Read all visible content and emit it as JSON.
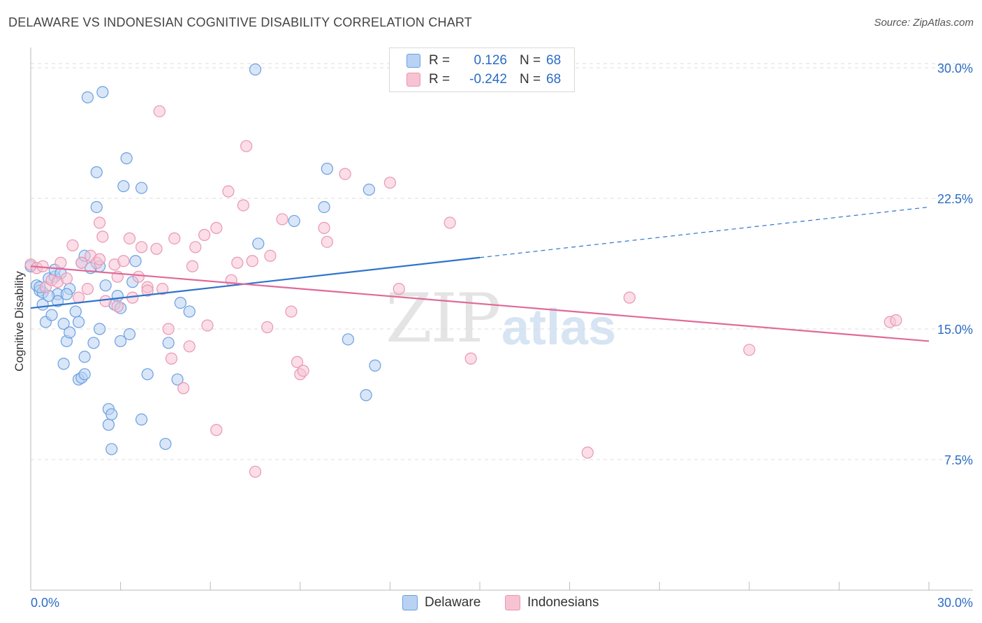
{
  "title": "DELAWARE VS INDONESIAN COGNITIVE DISABILITY CORRELATION CHART",
  "source": "Source: ZipAtlas.com",
  "watermark": {
    "part1": "ZIP",
    "part2": "atlas"
  },
  "legend": {
    "rows": [
      {
        "r_label": "R =",
        "r_value": "0.126",
        "n_label": "N =",
        "n_value": "68"
      },
      {
        "r_label": "R =",
        "r_value": "-0.242",
        "n_label": "N =",
        "n_value": "68"
      }
    ]
  },
  "bottom_legend": [
    "Delaware",
    "Indonesians"
  ],
  "colors": {
    "delaware_fill": "#b8d2f3",
    "delaware_stroke": "#6b9fe0",
    "delaware_line": "#2f73cc",
    "indonesian_fill": "#f7c3d3",
    "indonesian_stroke": "#e897b2",
    "indonesian_line": "#e06a98",
    "axis_label": "#2b6cc4",
    "grid": "#dddddd"
  },
  "chart_data": {
    "type": "scatter",
    "title": "DELAWARE VS INDONESIAN COGNITIVE DISABILITY CORRELATION CHART",
    "xlabel": "",
    "ylabel": "Cognitive Disability",
    "xlim": [
      0,
      30
    ],
    "ylim": [
      0,
      31.5
    ],
    "x_tick_labels": [
      "0.0%",
      "30.0%"
    ],
    "y_ticks": [
      7.5,
      15.0,
      22.5,
      30.0
    ],
    "y_tick_labels": [
      "7.5%",
      "15.0%",
      "22.5%",
      "30.0%"
    ],
    "grid": true,
    "legend_position": "top-center",
    "series": [
      {
        "name": "Delaware",
        "r": 0.126,
        "n": 68,
        "trend": {
          "x0": 0.0,
          "y0": 16.2,
          "x1": 15.0,
          "y1": 19.1,
          "dashed_to_x": 30.0,
          "dashed_to_y": 22.0
        },
        "points": [
          [
            0.0,
            18.6
          ],
          [
            0.2,
            17.5
          ],
          [
            0.3,
            17.2
          ],
          [
            0.4,
            17.1
          ],
          [
            0.4,
            16.4
          ],
          [
            0.5,
            15.4
          ],
          [
            0.6,
            17.9
          ],
          [
            0.7,
            15.8
          ],
          [
            0.8,
            18.0
          ],
          [
            0.8,
            18.4
          ],
          [
            0.9,
            17.0
          ],
          [
            0.9,
            16.6
          ],
          [
            1.1,
            15.3
          ],
          [
            1.1,
            13.0
          ],
          [
            1.2,
            14.3
          ],
          [
            1.3,
            17.3
          ],
          [
            1.3,
            14.8
          ],
          [
            1.5,
            16.0
          ],
          [
            1.6,
            12.1
          ],
          [
            1.6,
            15.4
          ],
          [
            1.7,
            12.2
          ],
          [
            1.8,
            13.4
          ],
          [
            1.8,
            12.4
          ],
          [
            1.7,
            18.8
          ],
          [
            1.8,
            19.2
          ],
          [
            1.9,
            28.3
          ],
          [
            2.1,
            14.2
          ],
          [
            2.2,
            24.0
          ],
          [
            2.2,
            22.0
          ],
          [
            2.3,
            18.6
          ],
          [
            2.3,
            15.0
          ],
          [
            2.4,
            28.6
          ],
          [
            2.5,
            17.5
          ],
          [
            2.6,
            9.5
          ],
          [
            2.6,
            10.4
          ],
          [
            2.7,
            10.1
          ],
          [
            2.7,
            8.1
          ],
          [
            2.8,
            16.4
          ],
          [
            2.9,
            16.9
          ],
          [
            3.0,
            14.3
          ],
          [
            3.2,
            24.8
          ],
          [
            3.1,
            23.2
          ],
          [
            3.3,
            14.7
          ],
          [
            3.4,
            17.7
          ],
          [
            3.5,
            18.9
          ],
          [
            3.7,
            23.1
          ],
          [
            3.7,
            9.8
          ],
          [
            3.9,
            12.4
          ],
          [
            4.5,
            8.4
          ],
          [
            4.6,
            14.2
          ],
          [
            4.9,
            12.1
          ],
          [
            5.0,
            16.5
          ],
          [
            5.3,
            16.0
          ],
          [
            7.5,
            29.9
          ],
          [
            7.6,
            19.9
          ],
          [
            8.8,
            21.2
          ],
          [
            9.8,
            22.0
          ],
          [
            9.9,
            24.2
          ],
          [
            10.6,
            14.4
          ],
          [
            11.2,
            11.2
          ],
          [
            11.3,
            23.0
          ],
          [
            11.5,
            12.9
          ],
          [
            0.3,
            17.4
          ],
          [
            1.0,
            18.2
          ],
          [
            2.0,
            18.5
          ],
          [
            3.0,
            16.2
          ],
          [
            1.2,
            17.0
          ],
          [
            0.6,
            16.9
          ]
        ]
      },
      {
        "name": "Indonesians",
        "r": -0.242,
        "n": 68,
        "trend": {
          "x0": 0.0,
          "y0": 18.6,
          "x1": 30.0,
          "y1": 14.3
        },
        "points": [
          [
            0.0,
            18.7
          ],
          [
            0.2,
            18.5
          ],
          [
            0.4,
            18.6
          ],
          [
            0.5,
            17.4
          ],
          [
            0.7,
            17.8
          ],
          [
            0.9,
            17.7
          ],
          [
            1.0,
            18.8
          ],
          [
            1.2,
            17.9
          ],
          [
            1.4,
            19.8
          ],
          [
            1.6,
            16.8
          ],
          [
            1.7,
            18.8
          ],
          [
            1.9,
            17.3
          ],
          [
            2.0,
            19.2
          ],
          [
            2.2,
            18.8
          ],
          [
            2.3,
            19.0
          ],
          [
            2.3,
            21.1
          ],
          [
            2.4,
            20.3
          ],
          [
            2.5,
            16.6
          ],
          [
            2.8,
            18.7
          ],
          [
            2.9,
            16.3
          ],
          [
            2.9,
            18.0
          ],
          [
            3.1,
            18.9
          ],
          [
            3.3,
            20.2
          ],
          [
            3.4,
            16.8
          ],
          [
            3.6,
            18.0
          ],
          [
            3.7,
            19.7
          ],
          [
            3.9,
            17.4
          ],
          [
            3.9,
            17.2
          ],
          [
            4.2,
            19.6
          ],
          [
            4.3,
            27.5
          ],
          [
            4.4,
            17.3
          ],
          [
            4.6,
            15.0
          ],
          [
            4.7,
            13.3
          ],
          [
            4.8,
            20.2
          ],
          [
            5.1,
            11.6
          ],
          [
            5.3,
            14.0
          ],
          [
            5.4,
            18.6
          ],
          [
            5.5,
            19.7
          ],
          [
            5.8,
            20.4
          ],
          [
            5.9,
            15.2
          ],
          [
            6.2,
            9.2
          ],
          [
            6.2,
            20.8
          ],
          [
            6.6,
            22.9
          ],
          [
            6.7,
            17.8
          ],
          [
            6.9,
            18.8
          ],
          [
            7.1,
            22.1
          ],
          [
            7.2,
            25.5
          ],
          [
            7.4,
            18.9
          ],
          [
            7.5,
            6.8
          ],
          [
            7.9,
            15.1
          ],
          [
            8.0,
            19.2
          ],
          [
            8.4,
            21.3
          ],
          [
            8.7,
            16.0
          ],
          [
            8.9,
            13.1
          ],
          [
            9.0,
            12.4
          ],
          [
            9.1,
            12.6
          ],
          [
            9.8,
            20.8
          ],
          [
            9.9,
            20.0
          ],
          [
            10.5,
            23.9
          ],
          [
            12.0,
            23.4
          ],
          [
            12.3,
            17.3
          ],
          [
            14.0,
            21.1
          ],
          [
            14.7,
            13.3
          ],
          [
            18.6,
            7.9
          ],
          [
            20.0,
            16.8
          ],
          [
            24.0,
            13.8
          ],
          [
            28.7,
            15.4
          ],
          [
            28.9,
            15.5
          ]
        ]
      }
    ]
  }
}
